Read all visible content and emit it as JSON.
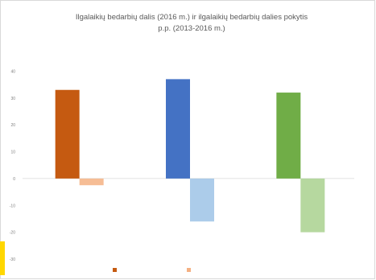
{
  "chart_data": {
    "type": "bar",
    "title": [
      "Ilgalaikių bedarbių dalis (2016 m.) ir ilgalaikių bedarbių dalies pokytis",
      "p.p. (2013-2016 m.)"
    ],
    "categories": [
      "",
      "",
      ""
    ],
    "series": [
      {
        "name": "",
        "values": [
          33,
          37,
          32
        ],
        "colors": [
          "#c55a11",
          "#4472c4",
          "#70ad47"
        ]
      },
      {
        "name": "",
        "values": [
          -2.5,
          -16,
          -20
        ],
        "colors": [
          "#f4b183",
          "#9dc3e6",
          "#a9d18e"
        ]
      }
    ],
    "ylim": [
      -30,
      50
    ],
    "yticks": [
      40,
      30,
      20,
      10,
      0,
      -10,
      -20,
      -30
    ],
    "grid": false,
    "legend_position": "bottom"
  }
}
